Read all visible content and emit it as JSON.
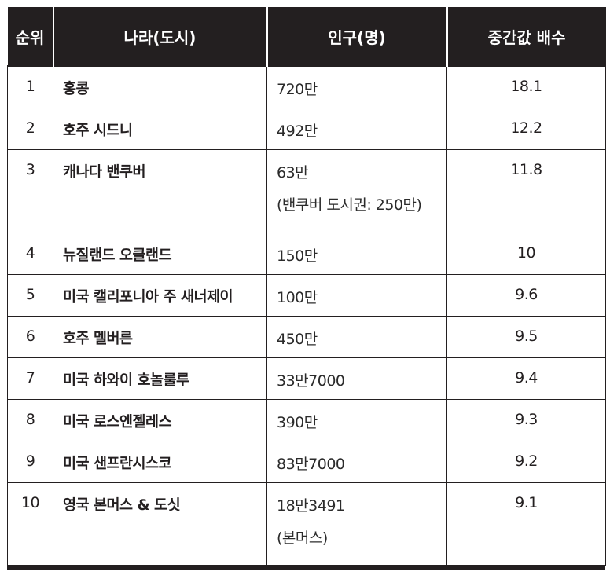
{
  "table": {
    "headers": [
      "순위",
      "나라(도시)",
      "인구(명)",
      "중간값 배수"
    ],
    "rows": [
      {
        "rank": "1",
        "city": "홍콩",
        "population": "720만",
        "population_note": "",
        "ratio": "18.1"
      },
      {
        "rank": "2",
        "city": "호주 시드니",
        "population": "492만",
        "population_note": "",
        "ratio": "12.2"
      },
      {
        "rank": "3",
        "city": "캐나다 밴쿠버",
        "population": "63만",
        "population_note": "(밴쿠버 도시권: 250만)",
        "ratio": "11.8"
      },
      {
        "rank": "4",
        "city": "뉴질랜드 오클랜드",
        "population": "150만",
        "population_note": "",
        "ratio": "10"
      },
      {
        "rank": "5",
        "city": "미국 캘리포니아 주 새너제이",
        "population": "100만",
        "population_note": "",
        "ratio": "9.6"
      },
      {
        "rank": "6",
        "city": "호주 멜버른",
        "population": "450만",
        "population_note": "",
        "ratio": "9.5"
      },
      {
        "rank": "7",
        "city": "미국 하와이 호놀룰루",
        "population": "33만7000",
        "population_note": "",
        "ratio": "9.4"
      },
      {
        "rank": "8",
        "city": "미국 로스엔젤레스",
        "population": "390만",
        "population_note": "",
        "ratio": "9.3"
      },
      {
        "rank": "9",
        "city": "미국 샌프란시스코",
        "population": "83만7000",
        "population_note": "",
        "ratio": "9.2"
      },
      {
        "rank": "10",
        "city": "영국 본머스 & 도싯",
        "population": "18만3491",
        "population_note": "(본머스)",
        "ratio": "9.1"
      }
    ]
  },
  "colors": {
    "header_bg": "#231f20",
    "header_text": "#ffffff",
    "border": "#231f20"
  }
}
